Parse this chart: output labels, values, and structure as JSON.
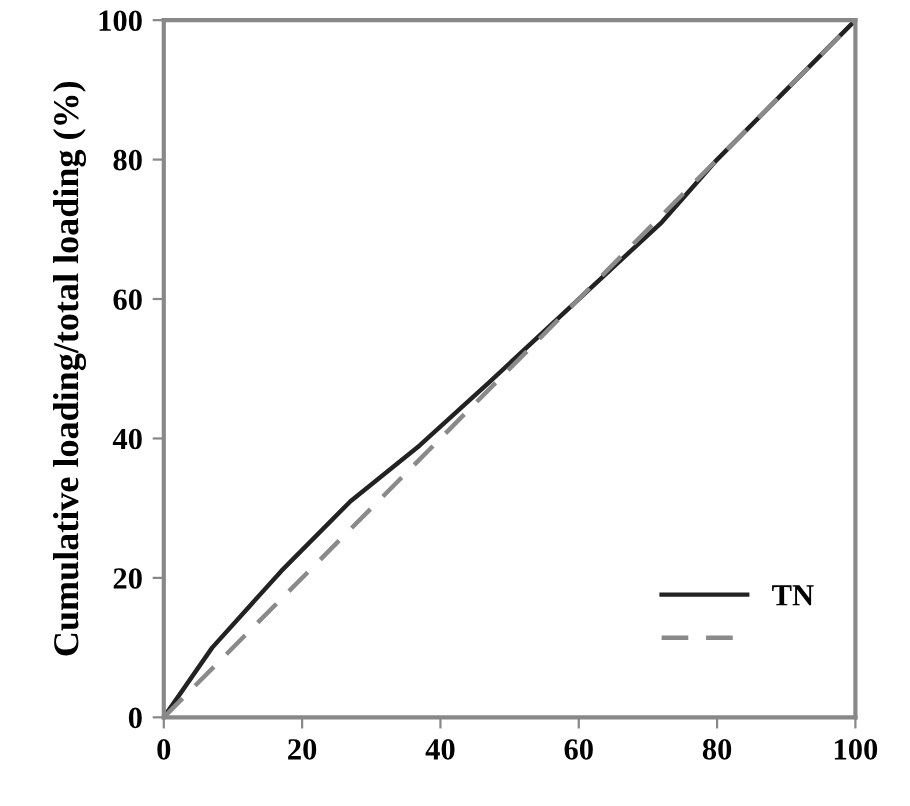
{
  "chart_data": {
    "type": "line",
    "ylabel": "Cumulative loading/total loading (%)",
    "series": [
      {
        "name": "TN",
        "color": "#222222",
        "line_style": "solid",
        "x": [
          0,
          7,
          17,
          27,
          37,
          47,
          60,
          72,
          80,
          90,
          100
        ],
        "values": [
          0,
          10,
          21,
          31,
          39,
          48,
          60,
          71,
          80,
          90,
          100
        ]
      },
      {
        "color": "#8a8a8a",
        "line_style": "dashed",
        "x": [
          0,
          100
        ],
        "values": [
          0,
          100
        ]
      }
    ],
    "xlim": [
      0,
      100
    ],
    "ylim": [
      0,
      100
    ],
    "xticks": [
      0,
      20,
      40,
      60,
      80,
      100
    ],
    "yticks": [
      0,
      20,
      40,
      60,
      80,
      100
    ],
    "grid": false,
    "legend": "bottom right",
    "marker": "none"
  }
}
